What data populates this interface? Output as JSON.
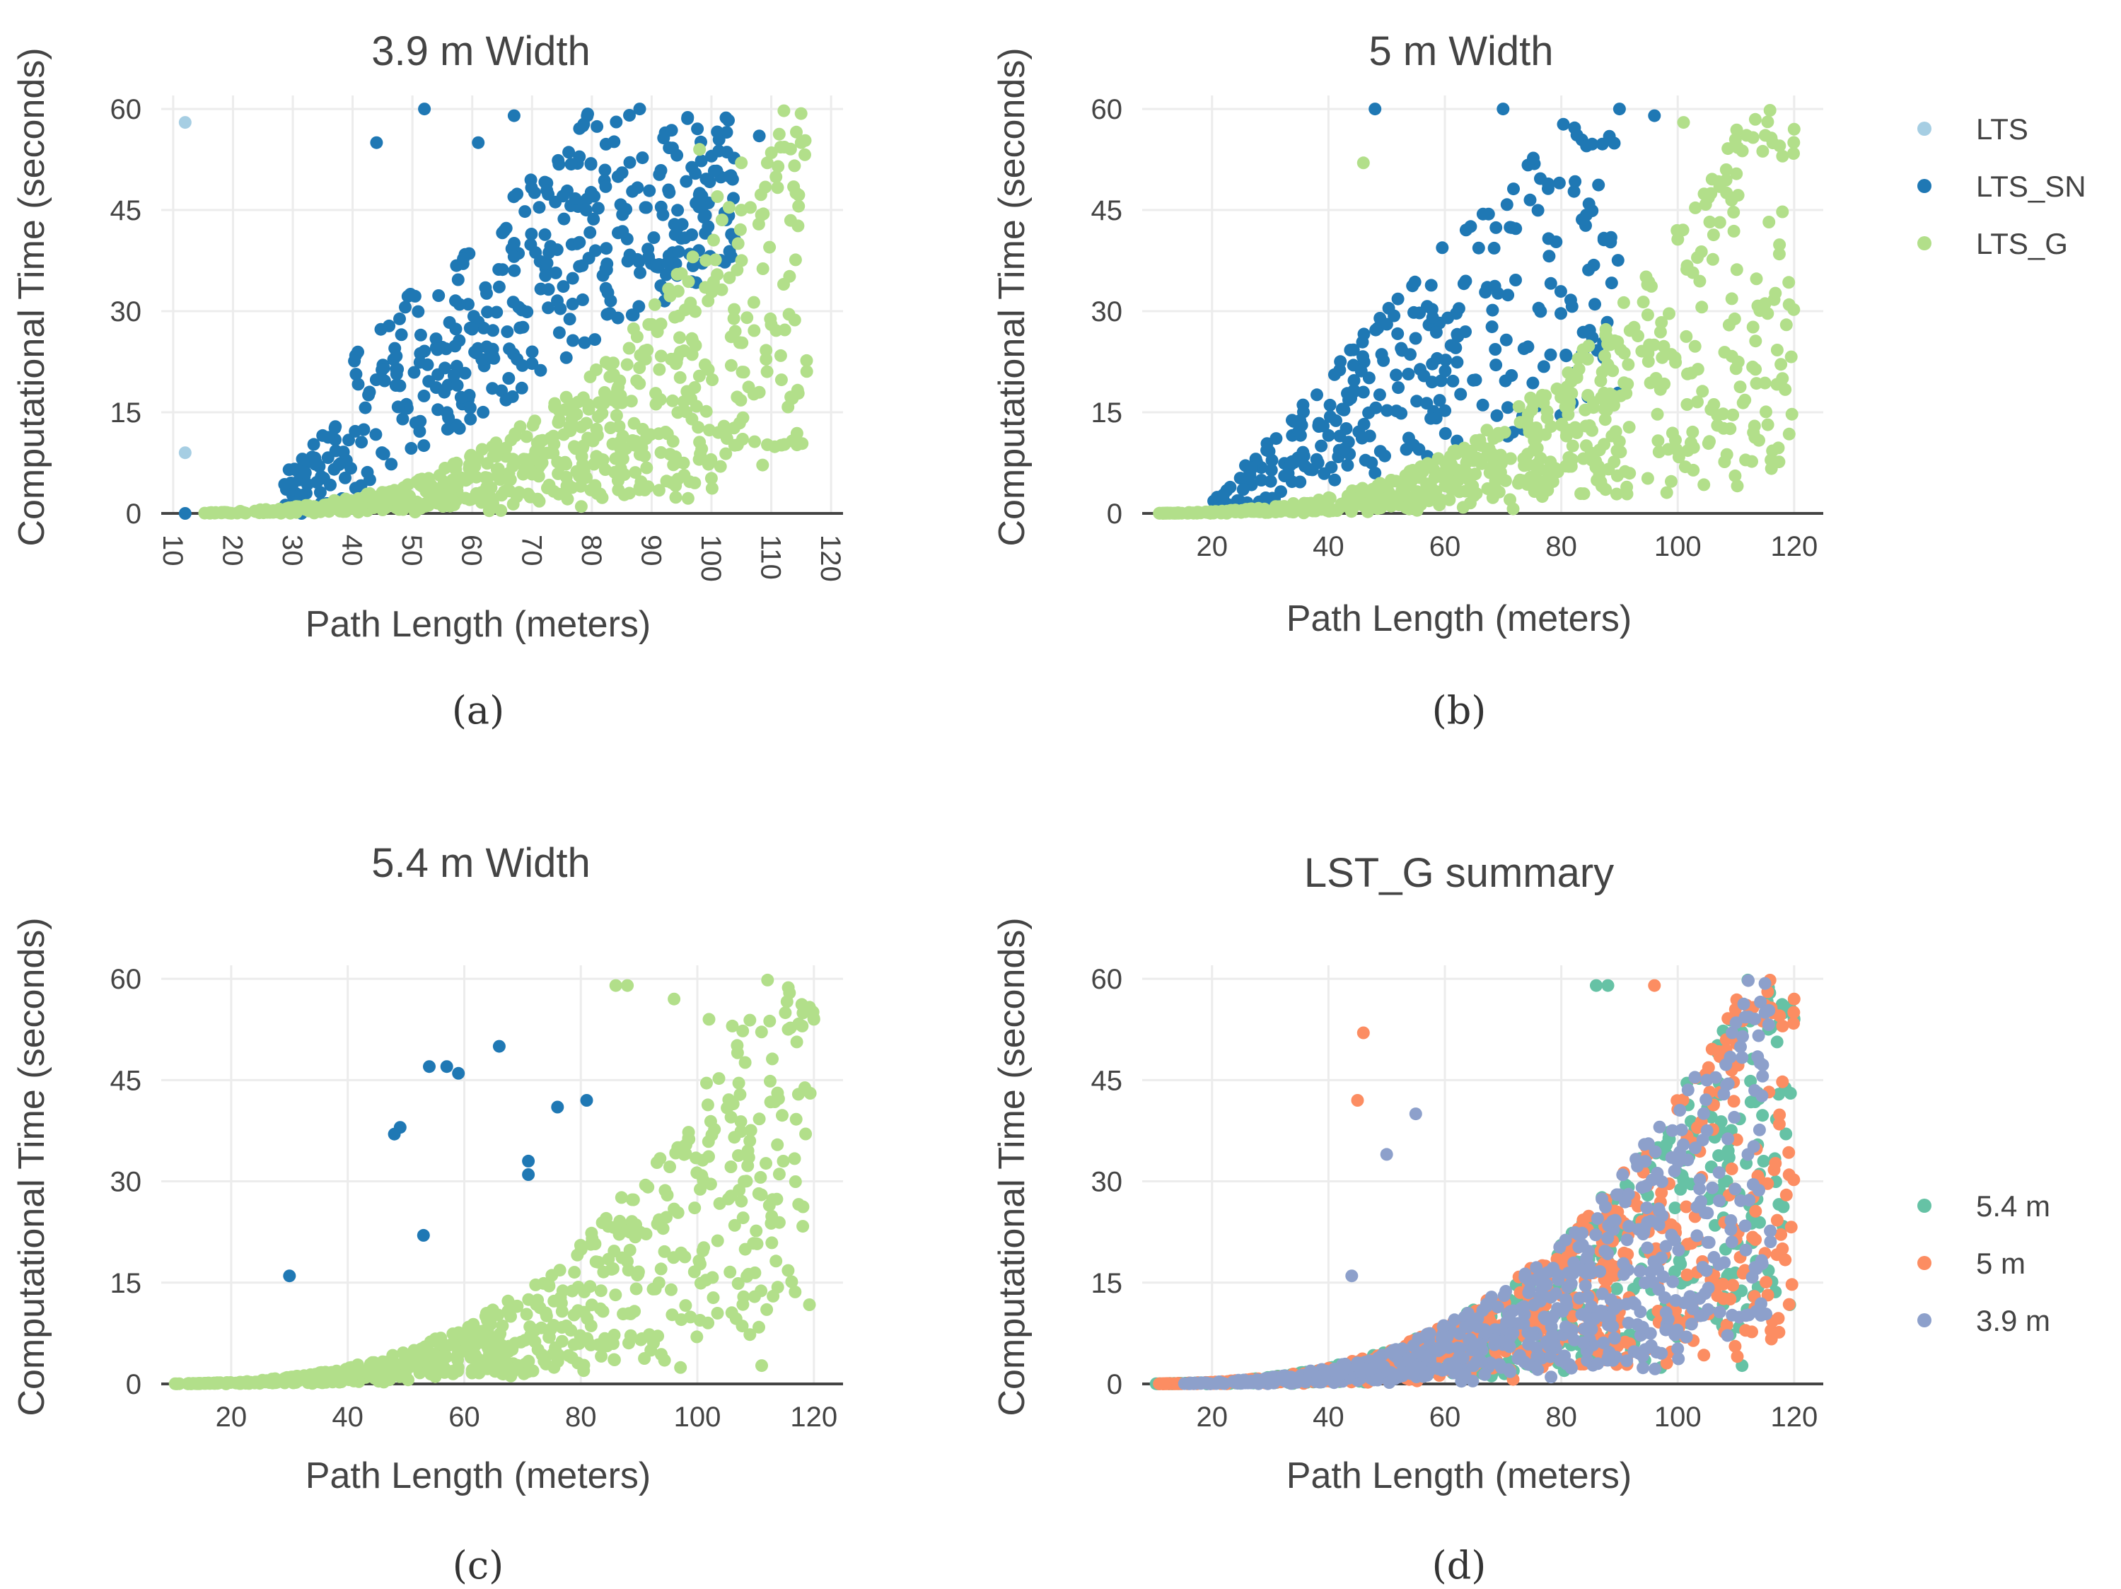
{
  "colors": {
    "LTS": "#a6cee3",
    "LTS_SN": "#1f78b4",
    "LTS_G": "#b2df8a",
    "w54": "#66c2a5",
    "w5": "#fc8d62",
    "w39": "#8da0cb"
  },
  "chart_data": [
    {
      "panel": "a",
      "type": "scatter",
      "title": "3.9 m Width",
      "caption": "(a)",
      "xlabel": "Path Length (meters)",
      "ylabel": "Computational Time (seconds)",
      "xlim": [
        8,
        122
      ],
      "ylim": [
        0,
        62
      ],
      "xticks": [
        "10",
        "20",
        "30",
        "40",
        "50",
        "60",
        "70",
        "80",
        "90",
        "100",
        "110",
        "120"
      ],
      "xtickRotate": true,
      "yticks": [
        "0",
        "15",
        "30",
        "45",
        "60"
      ],
      "series": [
        {
          "name": "LTS",
          "colorKey": "LTS",
          "points": [
            [
              12,
              58
            ],
            [
              12,
              9
            ]
          ]
        },
        {
          "name": "LTS_SN",
          "colorKey": "LTS_SN",
          "gen": {
            "n": 420,
            "xmin": 12,
            "xmax": 108,
            "shape": "sn",
            "seed": 11
          },
          "points": [
            [
              52,
              60
            ],
            [
              67,
              59
            ],
            [
              88,
              60
            ],
            [
              108,
              56
            ],
            [
              100,
              53
            ],
            [
              103,
              50
            ],
            [
              61,
              55
            ],
            [
              44,
              55
            ],
            [
              12,
              0
            ]
          ]
        },
        {
          "name": "LTS_G",
          "colorKey": "LTS_G",
          "gen": {
            "n": 620,
            "xmin": 15,
            "xmax": 116,
            "shape": "g",
            "seed": 21
          },
          "points": [
            [
              115,
              55
            ],
            [
              98,
              54
            ],
            [
              105,
              52
            ],
            [
              110,
              28
            ],
            [
              101,
              47
            ]
          ]
        }
      ]
    },
    {
      "panel": "b",
      "type": "scatter",
      "title": "5 m Width",
      "caption": "(b)",
      "xlabel": "Path Length (meters)",
      "ylabel": "Computational Time (seconds)",
      "xlim": [
        8,
        125
      ],
      "ylim": [
        0,
        62
      ],
      "xticks": [
        "20",
        "40",
        "60",
        "80",
        "100",
        "120"
      ],
      "xtickStart": 20,
      "xtickStep": 20,
      "yticks": [
        "0",
        "15",
        "30",
        "45",
        "60"
      ],
      "series": [
        {
          "name": "LTS_SN",
          "colorKey": "LTS_SN",
          "gen": {
            "n": 300,
            "xmin": 14,
            "xmax": 90,
            "shape": "sn_b",
            "seed": 31
          },
          "points": [
            [
              48,
              60
            ],
            [
              70,
              60
            ],
            [
              90,
              60
            ],
            [
              96,
              59
            ]
          ]
        },
        {
          "name": "LTS_G",
          "colorKey": "LTS_G",
          "gen": {
            "n": 640,
            "xmin": 10,
            "xmax": 120,
            "shape": "g",
            "seed": 41
          },
          "points": [
            [
              120,
              57
            ],
            [
              118,
              53
            ],
            [
              101,
              58
            ],
            [
              46,
              52
            ],
            [
              113,
              12
            ]
          ]
        }
      ]
    },
    {
      "panel": "c",
      "type": "scatter",
      "title": "5.4 m Width",
      "caption": "(c)",
      "xlabel": "Path Length (meters)",
      "ylabel": "Computational Time (seconds)",
      "xlim": [
        8,
        125
      ],
      "ylim": [
        0,
        62
      ],
      "xticks": [
        "20",
        "40",
        "60",
        "80",
        "100",
        "120"
      ],
      "xtickStart": 20,
      "xtickStep": 20,
      "yticks": [
        "0",
        "15",
        "30",
        "45",
        "60"
      ],
      "series": [
        {
          "name": "LTS_SN",
          "colorKey": "LTS_SN",
          "points": [
            [
              30,
              16
            ],
            [
              48,
              37
            ],
            [
              49,
              38
            ],
            [
              53,
              22
            ],
            [
              54,
              47
            ],
            [
              57,
              47
            ],
            [
              59,
              46
            ],
            [
              66,
              50
            ],
            [
              71,
              31
            ],
            [
              71,
              33
            ],
            [
              76,
              41
            ],
            [
              81,
              42
            ]
          ]
        },
        {
          "name": "LTS_G",
          "colorKey": "LTS_G",
          "gen": {
            "n": 640,
            "xmin": 10,
            "xmax": 120,
            "shape": "g",
            "seed": 51
          },
          "points": [
            [
              120,
              54
            ],
            [
              118,
              53
            ],
            [
              86,
              59
            ],
            [
              88,
              59
            ],
            [
              96,
              57
            ],
            [
              102,
              54
            ],
            [
              106,
              53
            ],
            [
              113,
              13
            ],
            [
              111,
              28
            ]
          ]
        }
      ]
    },
    {
      "panel": "d",
      "type": "scatter",
      "title": "LST_G summary",
      "caption": "(d)",
      "xlabel": "Path Length (meters)",
      "ylabel": "Computational Time (seconds)",
      "xlim": [
        8,
        125
      ],
      "ylim": [
        0,
        62
      ],
      "xticks": [
        "20",
        "40",
        "60",
        "80",
        "100",
        "120"
      ],
      "xtickStart": 20,
      "xtickStep": 20,
      "yticks": [
        "0",
        "15",
        "30",
        "45",
        "60"
      ],
      "series": [
        {
          "name": "5.4 m",
          "colorKey": "w54",
          "gen": {
            "n": 620,
            "xmin": 10,
            "xmax": 120,
            "shape": "g",
            "seed": 51
          },
          "points": [
            [
              86,
              59
            ],
            [
              88,
              59
            ],
            [
              120,
              54
            ],
            [
              113,
              13
            ]
          ]
        },
        {
          "name": "5 m",
          "colorKey": "w5",
          "gen": {
            "n": 620,
            "xmin": 10,
            "xmax": 120,
            "shape": "g",
            "seed": 41
          },
          "points": [
            [
              46,
              52
            ],
            [
              45,
              42
            ],
            [
              96,
              59
            ],
            [
              120,
              57
            ],
            [
              118,
              53
            ]
          ]
        },
        {
          "name": "3.9 m",
          "colorKey": "w39",
          "gen": {
            "n": 620,
            "xmin": 15,
            "xmax": 116,
            "shape": "g",
            "seed": 21
          },
          "points": [
            [
              55,
              40
            ],
            [
              50,
              34
            ],
            [
              44,
              16
            ],
            [
              115,
              55
            ]
          ]
        }
      ]
    }
  ],
  "legends": {
    "top": [
      {
        "label": "LTS",
        "colorKey": "LTS"
      },
      {
        "label": "LTS_SN",
        "colorKey": "LTS_SN"
      },
      {
        "label": "LTS_G",
        "colorKey": "LTS_G"
      }
    ],
    "bottom": [
      {
        "label": "5.4 m",
        "colorKey": "w54"
      },
      {
        "label": "5 m",
        "colorKey": "w5"
      },
      {
        "label": "3.9 m",
        "colorKey": "w39"
      }
    ]
  }
}
